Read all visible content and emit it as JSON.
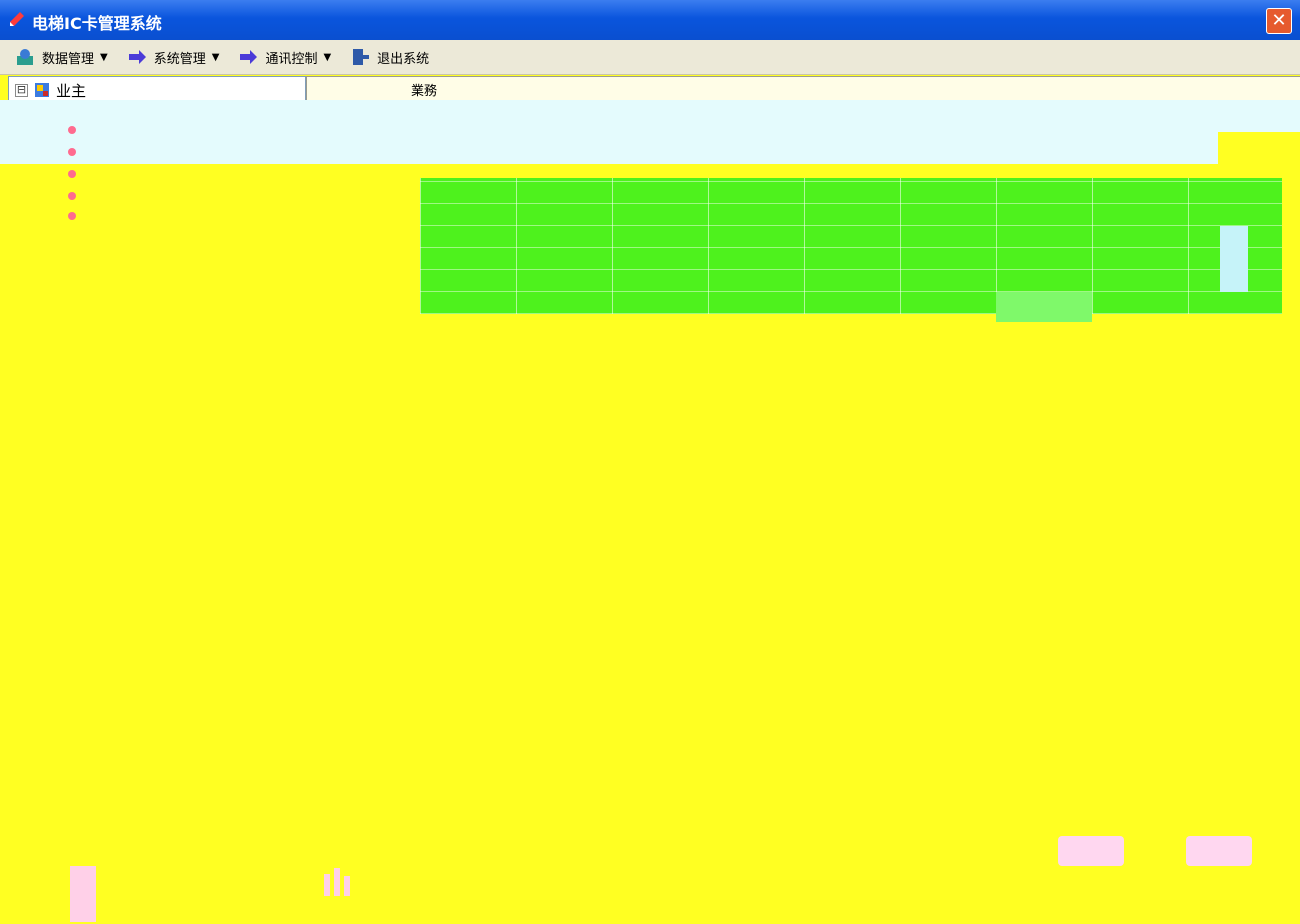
{
  "window": {
    "title": "电梯IC卡管理系统"
  },
  "menu": {
    "items": [
      {
        "label": "数据管理",
        "has_arrow": true
      },
      {
        "label": "系统管理",
        "has_arrow": true
      },
      {
        "label": "通讯控制",
        "has_arrow": true
      },
      {
        "label": "退出系统",
        "has_arrow": false
      }
    ]
  },
  "tree": {
    "root_label": "业主",
    "expander_symbol": "⊟"
  },
  "right_pane": {
    "header_label": "業務"
  },
  "close": {
    "label": "✕"
  }
}
